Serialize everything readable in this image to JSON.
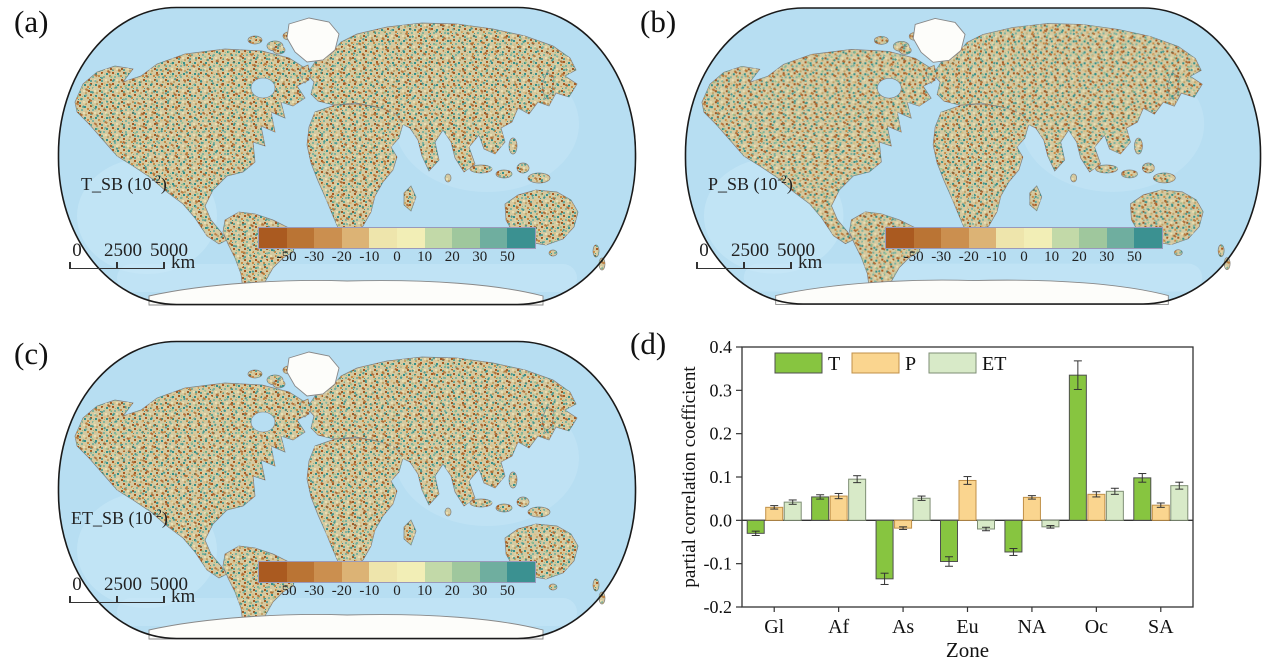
{
  "figure": {
    "letters": [
      "(a)",
      "(b)",
      "(c)",
      "(d)"
    ]
  },
  "maps": [
    {
      "label_prefix": "T_SB (10",
      "label_exp": "-2",
      "label_suffix": ")"
    },
    {
      "label_prefix": "P_SB (10",
      "label_exp": "-2",
      "label_suffix": ")"
    },
    {
      "label_prefix": "ET_SB (10",
      "label_exp": "-2",
      "label_suffix": ")"
    }
  ],
  "scalebar": {
    "labels": [
      "0",
      "2500",
      "5000"
    ],
    "unit": "km"
  },
  "colorbar": {
    "colors": [
      "#AA5A20",
      "#BA7434",
      "#CB8F4F",
      "#DCB375",
      "#EEE5AC",
      "#F2EEB6",
      "#C2D9A8",
      "#9FC79D",
      "#6FAE9F",
      "#3B9191"
    ],
    "ticks": [
      "-50",
      "-30",
      "-20",
      "-10",
      "0",
      "10",
      "20",
      "30",
      "50"
    ]
  },
  "map_colors": {
    "ocean": "#B7DEF2",
    "ocean_light": "#CFEAF8",
    "land_base": "#D5C9A0",
    "desert": "#F6F2E5",
    "ice": "#FDFDFA",
    "outline": "#1A1A1A",
    "tint_brown": "#A2591F",
    "tint_teal": "#2F8E8A"
  },
  "chart_data": {
    "type": "bar",
    "title": "",
    "xlabel": "Zone",
    "ylabel": "partial correlation coefficient",
    "categories": [
      "Gl",
      "Af",
      "As",
      "Eu",
      "NA",
      "Oc",
      "SA"
    ],
    "series": [
      {
        "name": "T",
        "fill": "#87C540",
        "border": "#4F4F4F",
        "values": [
          -0.03,
          0.054,
          -0.135,
          -0.095,
          -0.073,
          0.335,
          0.098
        ],
        "errors": [
          0.005,
          0.005,
          0.013,
          0.011,
          0.008,
          0.033,
          0.01
        ]
      },
      {
        "name": "P",
        "fill": "#FAD58F",
        "border": "#C09048",
        "values": [
          0.03,
          0.056,
          -0.018,
          0.092,
          0.053,
          0.06,
          0.035
        ],
        "errors": [
          0.004,
          0.006,
          0.003,
          0.009,
          0.004,
          0.006,
          0.005
        ]
      },
      {
        "name": "ET",
        "fill": "#D8EAC8",
        "border": "#7E8E74",
        "values": [
          0.042,
          0.095,
          0.051,
          -0.02,
          -0.015,
          0.067,
          0.08
        ],
        "errors": [
          0.005,
          0.008,
          0.005,
          0.004,
          0.003,
          0.007,
          0.008
        ]
      }
    ],
    "ylim": [
      -0.2,
      0.4
    ],
    "yticks": [
      0.4,
      0.3,
      0.2,
      0.1,
      0.0,
      -0.1,
      -0.2
    ],
    "ytick_labels": [
      "0.4",
      "0.3",
      "0.2",
      "0.1",
      "0.0",
      "-0.1",
      "-0.2"
    ],
    "legend_position": "top-left-inside",
    "grid": false
  }
}
